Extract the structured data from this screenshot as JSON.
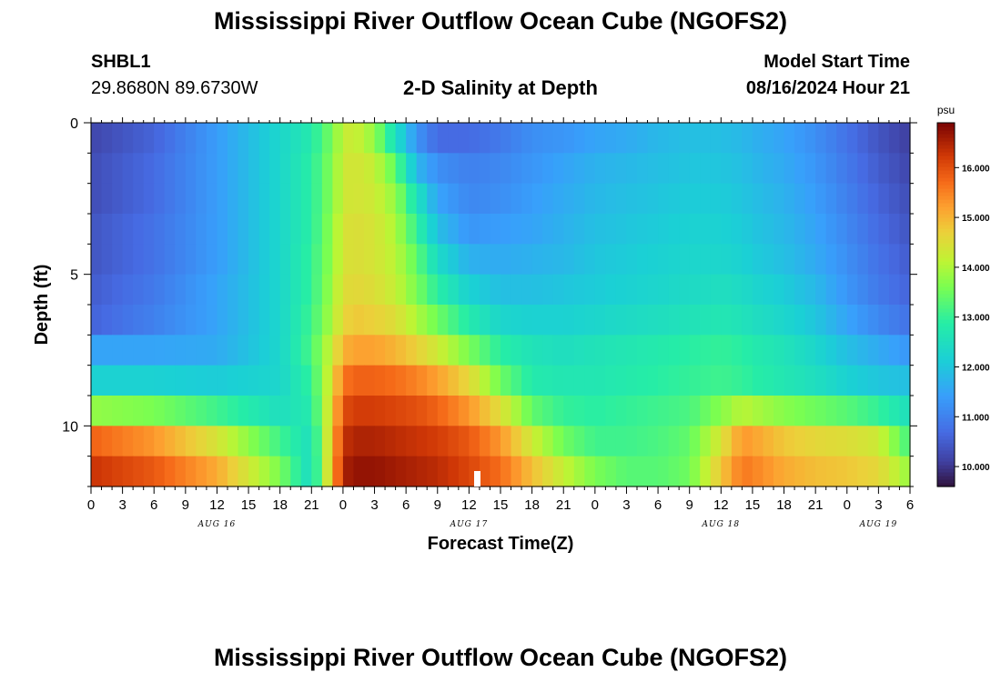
{
  "header": {
    "title": "Mississippi River Outflow Ocean Cube (NGOFS2)",
    "station_id": "SHBL1",
    "station_coords": "29.8680N  89.6730W",
    "subtitle": "2-D Salinity at Depth",
    "model_start_label": "Model Start Time",
    "model_start_value": "08/16/2024 Hour 21"
  },
  "footer": {
    "title": "Mississippi River Outflow Ocean Cube (NGOFS2)"
  },
  "chart_data": {
    "type": "heatmap",
    "title": "2-D Salinity at Depth",
    "xlabel": "Forecast Time(Z)",
    "ylabel": "Depth (ft)",
    "units": "psu",
    "colorscale": "turbo",
    "x_hours": [
      0,
      78
    ],
    "x_tick_labels": [
      "0",
      "3",
      "6",
      "9",
      "12",
      "15",
      "18",
      "21",
      "0",
      "3",
      "6",
      "9",
      "12",
      "15",
      "18",
      "21",
      "0",
      "3",
      "6",
      "9",
      "12",
      "15",
      "18",
      "21",
      "0",
      "3",
      "6"
    ],
    "date_labels": [
      {
        "label": "AUG 16",
        "hour": 12
      },
      {
        "label": "AUG 17",
        "hour": 36
      },
      {
        "label": "AUG 18",
        "hour": 60
      },
      {
        "label": "AUG 19",
        "hour": 75
      }
    ],
    "y_range": [
      0,
      12
    ],
    "y_tick_labels": [
      "0",
      "5",
      "10"
    ],
    "y_tick_values": [
      0,
      5,
      10
    ],
    "color_range": [
      9.6,
      16.9
    ],
    "colorbar_ticks": [
      "10.000",
      "11.000",
      "12.000",
      "13.000",
      "14.000",
      "15.000",
      "16.000"
    ],
    "colorbar_tick_values": [
      10,
      11,
      12,
      13,
      14,
      15,
      16
    ],
    "depth_layers_ft": [
      0,
      1,
      2,
      3,
      4,
      5,
      6,
      7,
      8,
      9,
      10,
      11
    ],
    "column_hours": [
      0,
      6,
      12,
      18,
      21,
      23,
      24,
      25,
      27,
      29,
      31,
      33,
      36,
      39,
      42,
      45,
      48,
      51,
      54,
      57,
      60,
      62,
      63,
      66,
      69,
      72,
      75,
      78
    ],
    "salinity": [
      [
        10.2,
        10.6,
        11.4,
        12.3,
        12.8,
        13.6,
        14.2,
        14.3,
        13.8,
        12.5,
        11.3,
        10.7,
        10.7,
        10.9,
        11.2,
        11.3,
        11.5,
        11.6,
        11.8,
        11.9,
        11.9,
        11.8,
        11.7,
        11.5,
        11.2,
        10.8,
        10.4,
        10.1
      ],
      [
        10.3,
        10.7,
        11.4,
        12.3,
        12.9,
        13.7,
        14.3,
        14.4,
        14.2,
        13.4,
        11.8,
        11.2,
        11.0,
        11.1,
        11.3,
        11.5,
        11.7,
        11.8,
        11.9,
        12.0,
        12.0,
        11.9,
        11.8,
        11.6,
        11.3,
        10.9,
        10.5,
        10.2
      ],
      [
        10.3,
        10.7,
        11.4,
        12.3,
        12.9,
        13.7,
        14.3,
        14.4,
        14.3,
        13.8,
        12.6,
        11.5,
        11.1,
        11.2,
        11.4,
        11.6,
        11.8,
        11.9,
        12.0,
        12.1,
        12.1,
        12.0,
        11.9,
        11.7,
        11.4,
        11.0,
        10.6,
        10.3
      ],
      [
        10.4,
        10.8,
        11.4,
        12.3,
        12.9,
        13.8,
        14.4,
        14.5,
        14.4,
        14.0,
        13.0,
        11.9,
        11.3,
        11.4,
        11.5,
        11.7,
        11.9,
        12.0,
        12.1,
        12.2,
        12.2,
        12.1,
        12.0,
        11.8,
        11.5,
        11.1,
        10.7,
        10.4
      ],
      [
        10.4,
        10.8,
        11.4,
        12.3,
        13.0,
        13.8,
        14.4,
        14.5,
        14.4,
        14.1,
        13.4,
        12.4,
        11.7,
        11.6,
        11.7,
        11.8,
        12.0,
        12.1,
        12.2,
        12.3,
        12.3,
        12.2,
        12.1,
        11.9,
        11.6,
        11.2,
        10.8,
        10.5
      ],
      [
        10.5,
        10.9,
        11.5,
        12.3,
        13.0,
        13.9,
        14.5,
        14.6,
        14.5,
        14.2,
        13.6,
        12.9,
        12.2,
        11.9,
        11.9,
        12.0,
        12.1,
        12.2,
        12.3,
        12.4,
        12.5,
        12.4,
        12.3,
        12.1,
        11.8,
        11.3,
        10.9,
        10.6
      ],
      [
        10.6,
        11.0,
        11.5,
        12.3,
        13.1,
        14.0,
        14.6,
        14.8,
        14.7,
        14.5,
        14.0,
        13.5,
        12.8,
        12.3,
        12.2,
        12.2,
        12.3,
        12.4,
        12.5,
        12.6,
        12.7,
        12.6,
        12.5,
        12.3,
        12.0,
        11.5,
        11.1,
        10.8
      ],
      [
        11.5,
        11.5,
        11.6,
        12.3,
        13.2,
        14.3,
        15.0,
        15.2,
        15.2,
        15.0,
        14.7,
        14.3,
        13.6,
        12.9,
        12.6,
        12.5,
        12.6,
        12.7,
        12.8,
        12.9,
        13.0,
        12.9,
        12.8,
        12.6,
        12.3,
        11.9,
        11.6,
        11.3
      ],
      [
        12.2,
        12.2,
        12.1,
        12.3,
        13.0,
        14.5,
        15.6,
        15.8,
        15.8,
        15.7,
        15.5,
        15.2,
        14.6,
        13.5,
        12.8,
        12.7,
        12.7,
        12.8,
        12.9,
        13.0,
        13.1,
        13.0,
        12.9,
        12.7,
        12.5,
        12.2,
        12.0,
        11.9
      ],
      [
        13.8,
        13.6,
        13.1,
        12.5,
        12.8,
        14.7,
        16.0,
        16.2,
        16.2,
        16.1,
        16.0,
        15.8,
        15.3,
        14.5,
        13.4,
        13.0,
        12.9,
        13.0,
        13.1,
        13.2,
        13.7,
        14.1,
        14.0,
        13.7,
        13.5,
        13.3,
        13.0,
        12.5
      ],
      [
        15.8,
        15.3,
        14.4,
        13.1,
        12.5,
        14.9,
        16.3,
        16.5,
        16.5,
        16.4,
        16.3,
        16.2,
        15.9,
        15.3,
        14.3,
        13.5,
        13.1,
        13.1,
        13.2,
        13.4,
        14.4,
        15.3,
        15.2,
        14.8,
        14.6,
        14.5,
        14.3,
        13.1
      ],
      [
        16.3,
        15.9,
        15.1,
        13.6,
        12.4,
        15.0,
        16.5,
        16.7,
        16.7,
        16.6,
        16.5,
        16.4,
        16.1,
        15.7,
        14.9,
        14.2,
        13.6,
        13.3,
        13.3,
        13.5,
        14.8,
        15.6,
        15.5,
        15.1,
        14.9,
        14.8,
        14.6,
        13.8
      ]
    ]
  }
}
